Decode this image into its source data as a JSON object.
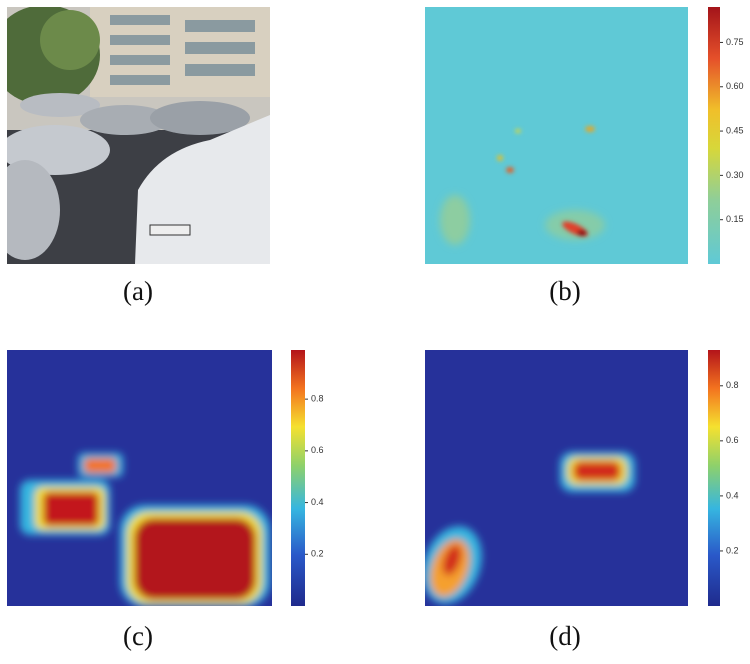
{
  "panels": [
    {
      "label": "(a)"
    },
    {
      "label": "(b)",
      "colorbar": {
        "clim": [
          0,
          0.87
        ],
        "ticks": [
          0.15,
          {
            "value": 0.3,
            "label": "0.30"
          },
          0.45,
          {
            "value": 0.6,
            "label": "0.60"
          },
          0.75
        ]
      }
    },
    {
      "label": "(c)",
      "colorbar": {
        "clim": [
          0,
          0.99
        ],
        "ticks": [
          0.2,
          0.4,
          0.6,
          0.8
        ]
      }
    },
    {
      "label": "(d)",
      "colorbar": {
        "clim": [
          0,
          0.93
        ],
        "ticks": [
          0.2,
          0.4,
          0.6,
          0.8
        ]
      }
    }
  ]
}
